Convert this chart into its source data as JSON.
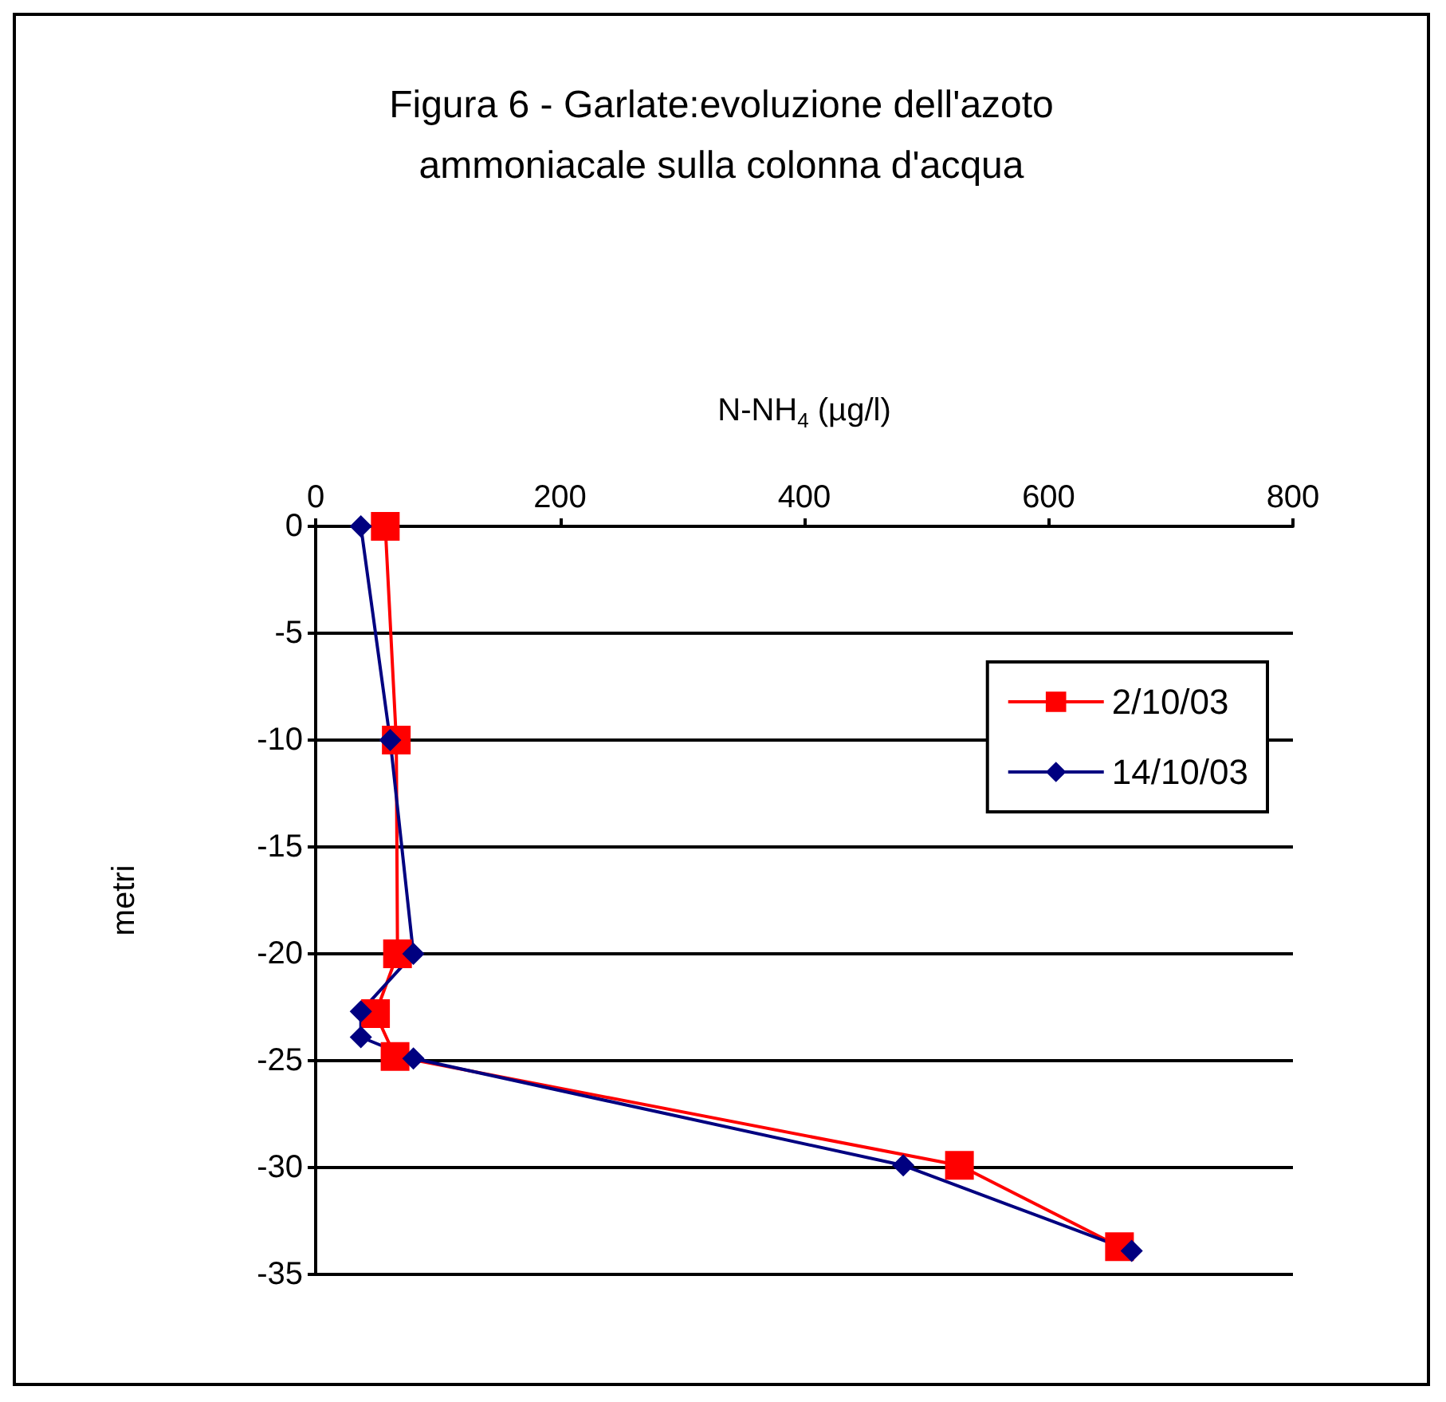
{
  "chart_data": {
    "type": "line",
    "title": "Figura 6 - Garlate:evoluzione dell'azoto\nammoniacale sulla colonna d'acqua",
    "xlabel": "N-NH$_{4}$ (µg/l)",
    "ylabel": "metri",
    "orientation": "horizontal",
    "series": [
      {
        "name": "2/10/03",
        "color": "#ff0000",
        "marker": "square",
        "x": [
          0,
          -10,
          -20,
          -22.8,
          -24.8,
          -29.9,
          -33.7
        ],
        "values": [
          57,
          66,
          67,
          49,
          65,
          527,
          658
        ]
      },
      {
        "name": "14/10/03",
        "color": "#000080",
        "marker": "diamond",
        "x": [
          0,
          -10,
          -20,
          -22.7,
          -23.9,
          -24.9,
          -29.9,
          -33.9
        ],
        "values": [
          37,
          61,
          80,
          37,
          37,
          80,
          481,
          668
        ]
      }
    ],
    "xlim": [
      0,
      800
    ],
    "xticks": [
      0,
      200,
      400,
      600,
      800
    ],
    "ylim": [
      -35,
      0
    ],
    "yticks": [
      -35,
      -30,
      -25,
      -20,
      -15,
      -10,
      -5,
      0
    ],
    "grid": "y",
    "legend": "right"
  }
}
